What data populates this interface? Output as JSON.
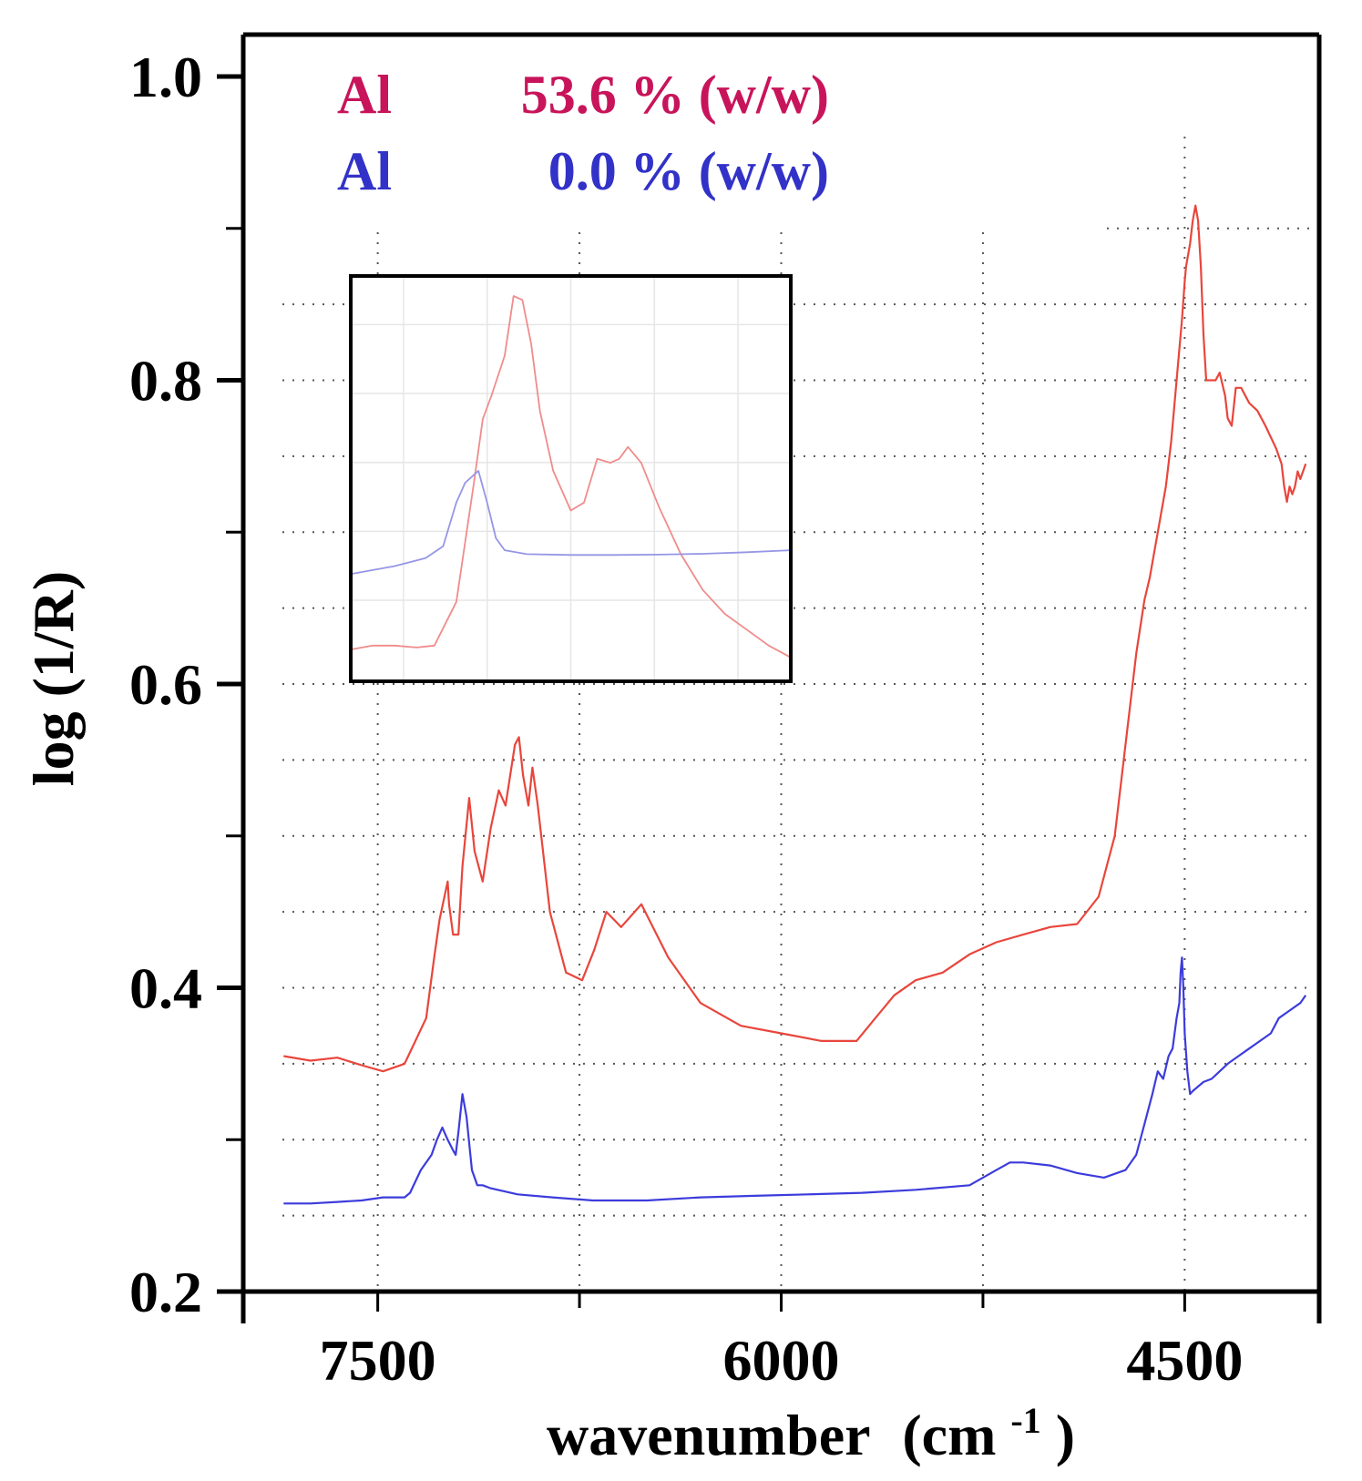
{
  "chart_data": {
    "type": "line",
    "xlabel": "wavenumber",
    "xlabel_unit_base": "(cm",
    "xlabel_unit_exp": "-1",
    "xlabel_unit_close": ")",
    "ylabel": "log (1/R)",
    "xlim": [
      8000,
      4000
    ],
    "ylim": [
      0.2,
      1.03
    ],
    "x_ticks": [
      7500,
      6000,
      4500
    ],
    "x_tick_labels": [
      "7500",
      "6000",
      "4500"
    ],
    "y_ticks": [
      0.2,
      0.4,
      0.6,
      0.8,
      1.0
    ],
    "y_tick_labels": [
      "0.2",
      "0.4",
      "0.6",
      "0.8",
      "1.0"
    ],
    "grid": true,
    "legend": {
      "position": "top-left",
      "entries": [
        {
          "name": "Al",
          "value": "53.6 % (w/w)",
          "color": "#c8145a"
        },
        {
          "name": "Al",
          "value": "0.0 % (w/w)",
          "color": "#3232c8"
        }
      ]
    },
    "series": [
      {
        "name": "Al 53.6 % (w/w)",
        "color": "#e8463c",
        "x": [
          7850,
          7750,
          7650,
          7560,
          7480,
          7400,
          7320,
          7290,
          7270,
          7240,
          7235,
          7220,
          7200,
          7185,
          7160,
          7140,
          7110,
          7080,
          7050,
          7025,
          6990,
          6975,
          6960,
          6940,
          6925,
          6905,
          6860,
          6800,
          6740,
          6695,
          6650,
          6595,
          6520,
          6420,
          6300,
          6150,
          6000,
          5850,
          5720,
          5650,
          5580,
          5500,
          5400,
          5300,
          5200,
          5100,
          5000,
          4900,
          4820,
          4760,
          4720,
          4680,
          4650,
          4630,
          4610,
          4590,
          4570,
          4550,
          4530,
          4510,
          4500,
          4495,
          4480,
          4470,
          4460,
          4450,
          4440,
          4430,
          4420,
          4400,
          4385,
          4370,
          4350,
          4340,
          4325,
          4310,
          4290,
          4260,
          4230,
          4200,
          4160,
          4140,
          4130,
          4120,
          4110,
          4100,
          4090,
          4080,
          4070,
          4060,
          4050
        ],
        "y": [
          0.355,
          0.352,
          0.354,
          0.349,
          0.345,
          0.35,
          0.38,
          0.42,
          0.445,
          0.47,
          0.455,
          0.435,
          0.435,
          0.48,
          0.525,
          0.49,
          0.47,
          0.505,
          0.53,
          0.52,
          0.56,
          0.565,
          0.54,
          0.52,
          0.545,
          0.52,
          0.45,
          0.41,
          0.405,
          0.425,
          0.45,
          0.44,
          0.455,
          0.42,
          0.39,
          0.375,
          0.37,
          0.365,
          0.365,
          0.38,
          0.395,
          0.405,
          0.41,
          0.422,
          0.43,
          0.435,
          0.44,
          0.442,
          0.46,
          0.5,
          0.56,
          0.62,
          0.655,
          0.67,
          0.69,
          0.71,
          0.73,
          0.76,
          0.8,
          0.84,
          0.865,
          0.875,
          0.89,
          0.905,
          0.915,
          0.905,
          0.875,
          0.83,
          0.8,
          0.8,
          0.8,
          0.805,
          0.79,
          0.775,
          0.77,
          0.795,
          0.795,
          0.785,
          0.78,
          0.77,
          0.755,
          0.745,
          0.73,
          0.72,
          0.73,
          0.725,
          0.73,
          0.74,
          0.735,
          0.74,
          0.745
        ]
      },
      {
        "name": "Al 0.0 % (w/w)",
        "color": "#3c3cdc",
        "x": [
          7850,
          7750,
          7650,
          7560,
          7480,
          7400,
          7380,
          7340,
          7300,
          7280,
          7260,
          7240,
          7220,
          7210,
          7200,
          7185,
          7170,
          7150,
          7130,
          7110,
          7080,
          6980,
          6850,
          6700,
          6500,
          6300,
          6100,
          5900,
          5700,
          5500,
          5300,
          5200,
          5150,
          5100,
          5000,
          4900,
          4800,
          4720,
          4680,
          4650,
          4620,
          4600,
          4580,
          4560,
          4545,
          4530,
          4520,
          4515,
          4510,
          4505,
          4500,
          4490,
          4480,
          4470,
          4450,
          4430,
          4400,
          4370,
          4340,
          4300,
          4260,
          4220,
          4180,
          4150,
          4110,
          4070,
          4050
        ],
        "y": [
          0.258,
          0.258,
          0.259,
          0.26,
          0.262,
          0.262,
          0.265,
          0.28,
          0.29,
          0.3,
          0.308,
          0.3,
          0.293,
          0.29,
          0.305,
          0.33,
          0.315,
          0.28,
          0.27,
          0.27,
          0.268,
          0.264,
          0.262,
          0.26,
          0.26,
          0.262,
          0.263,
          0.264,
          0.265,
          0.267,
          0.27,
          0.28,
          0.285,
          0.285,
          0.283,
          0.278,
          0.275,
          0.28,
          0.29,
          0.31,
          0.33,
          0.345,
          0.34,
          0.355,
          0.36,
          0.38,
          0.39,
          0.41,
          0.42,
          0.4,
          0.37,
          0.345,
          0.33,
          0.332,
          0.335,
          0.338,
          0.34,
          0.345,
          0.35,
          0.355,
          0.36,
          0.365,
          0.37,
          0.38,
          0.385,
          0.39,
          0.395
        ]
      }
    ],
    "inset": {
      "type": "line",
      "description_axes": "zoom of 7400-6000 cm-1 region",
      "series": [
        {
          "name": "Al 53.6 % (w/w) zoom",
          "color": "#f08c8c",
          "x": [
            0,
            0.05,
            0.1,
            0.15,
            0.19,
            0.24,
            0.28,
            0.3,
            0.32,
            0.35,
            0.37,
            0.39,
            0.41,
            0.43,
            0.46,
            0.5,
            0.53,
            0.56,
            0.59,
            0.61,
            0.63,
            0.66,
            0.7,
            0.75,
            0.8,
            0.85,
            0.9,
            0.95,
            1.0
          ],
          "y": [
            0.08,
            0.09,
            0.09,
            0.085,
            0.09,
            0.2,
            0.5,
            0.66,
            0.72,
            0.82,
            0.97,
            0.96,
            0.85,
            0.68,
            0.53,
            0.43,
            0.45,
            0.56,
            0.55,
            0.56,
            0.59,
            0.55,
            0.44,
            0.32,
            0.23,
            0.17,
            0.13,
            0.09,
            0.06
          ]
        },
        {
          "name": "Al 0.0 % (w/w) zoom",
          "color": "#9696e6",
          "x": [
            0,
            0.1,
            0.17,
            0.21,
            0.24,
            0.26,
            0.29,
            0.31,
            0.33,
            0.35,
            0.4,
            0.5,
            0.6,
            0.7,
            0.8,
            0.9,
            1.0
          ],
          "y": [
            0.27,
            0.29,
            0.31,
            0.34,
            0.45,
            0.5,
            0.53,
            0.45,
            0.36,
            0.33,
            0.32,
            0.318,
            0.318,
            0.319,
            0.321,
            0.325,
            0.33
          ]
        }
      ]
    }
  }
}
